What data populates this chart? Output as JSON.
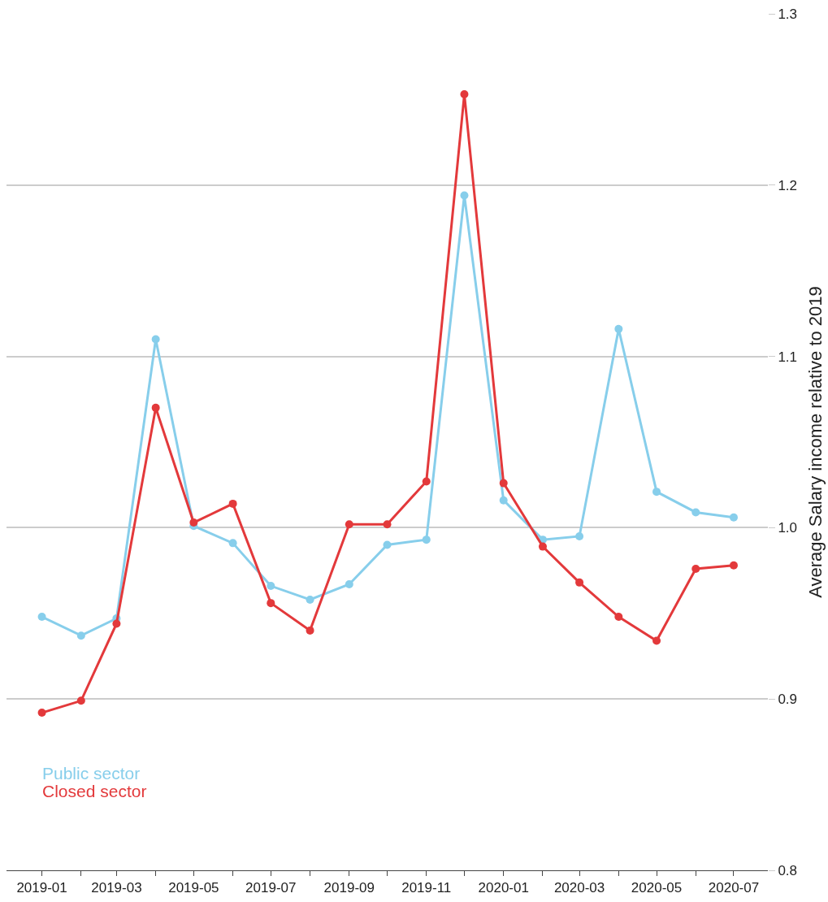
{
  "chart_data": {
    "type": "line",
    "ylabel": "Average Salary income relative to 2019",
    "x": [
      "2019-01",
      "2019-02",
      "2019-03",
      "2019-04",
      "2019-05",
      "2019-06",
      "2019-07",
      "2019-08",
      "2019-09",
      "2019-10",
      "2019-11",
      "2019-12",
      "2020-01",
      "2020-02",
      "2020-03",
      "2020-04",
      "2020-05",
      "2020-06",
      "2020-07"
    ],
    "series": [
      {
        "name": "Public sector",
        "color": "#87ceeb",
        "values": [
          0.948,
          0.937,
          0.947,
          1.11,
          1.001,
          0.991,
          0.966,
          0.958,
          0.967,
          0.99,
          0.993,
          1.194,
          1.016,
          0.993,
          0.995,
          1.116,
          1.021,
          1.009,
          1.006
        ]
      },
      {
        "name": "Closed sector",
        "color": "#e3393b",
        "values": [
          0.892,
          0.899,
          0.944,
          1.07,
          1.003,
          1.014,
          0.956,
          0.94,
          1.002,
          1.002,
          1.027,
          1.253,
          1.026,
          0.989,
          0.968,
          0.948,
          0.934,
          0.976,
          0.978
        ]
      }
    ],
    "xlim": [
      "2018-12-04",
      "2020-07-28"
    ],
    "xticks": [
      {
        "value": "2019-01",
        "label": "2019-01"
      },
      {
        "value": "2019-02",
        "label": null
      },
      {
        "value": "2019-03",
        "label": "2019-03"
      },
      {
        "value": "2019-04",
        "label": null
      },
      {
        "value": "2019-05",
        "label": "2019-05"
      },
      {
        "value": "2019-06",
        "label": null
      },
      {
        "value": "2019-07",
        "label": "2019-07"
      },
      {
        "value": "2019-08",
        "label": null
      },
      {
        "value": "2019-09",
        "label": "2019-09"
      },
      {
        "value": "2019-10",
        "label": null
      },
      {
        "value": "2019-11",
        "label": "2019-11"
      },
      {
        "value": "2019-12",
        "label": null
      },
      {
        "value": "2020-01",
        "label": "2020-01"
      },
      {
        "value": "2020-02",
        "label": null
      },
      {
        "value": "2020-03",
        "label": "2020-03"
      },
      {
        "value": "2020-04",
        "label": null
      },
      {
        "value": "2020-05",
        "label": "2020-05"
      },
      {
        "value": "2020-06",
        "label": null
      },
      {
        "value": "2020-07",
        "label": "2020-07"
      }
    ],
    "ylim": [
      0.8,
      1.3
    ],
    "yticks": [
      {
        "value": 0.8,
        "label": "0.8"
      },
      {
        "value": 0.9,
        "label": "0.9"
      },
      {
        "value": 1.0,
        "label": "1.0"
      },
      {
        "value": 1.1,
        "label": "1.1"
      },
      {
        "value": 1.2,
        "label": "1.2"
      },
      {
        "value": 1.3,
        "label": "1.3"
      }
    ],
    "grid": "y",
    "legend": "bottom left",
    "marker": "circle",
    "line_style": "solid"
  }
}
